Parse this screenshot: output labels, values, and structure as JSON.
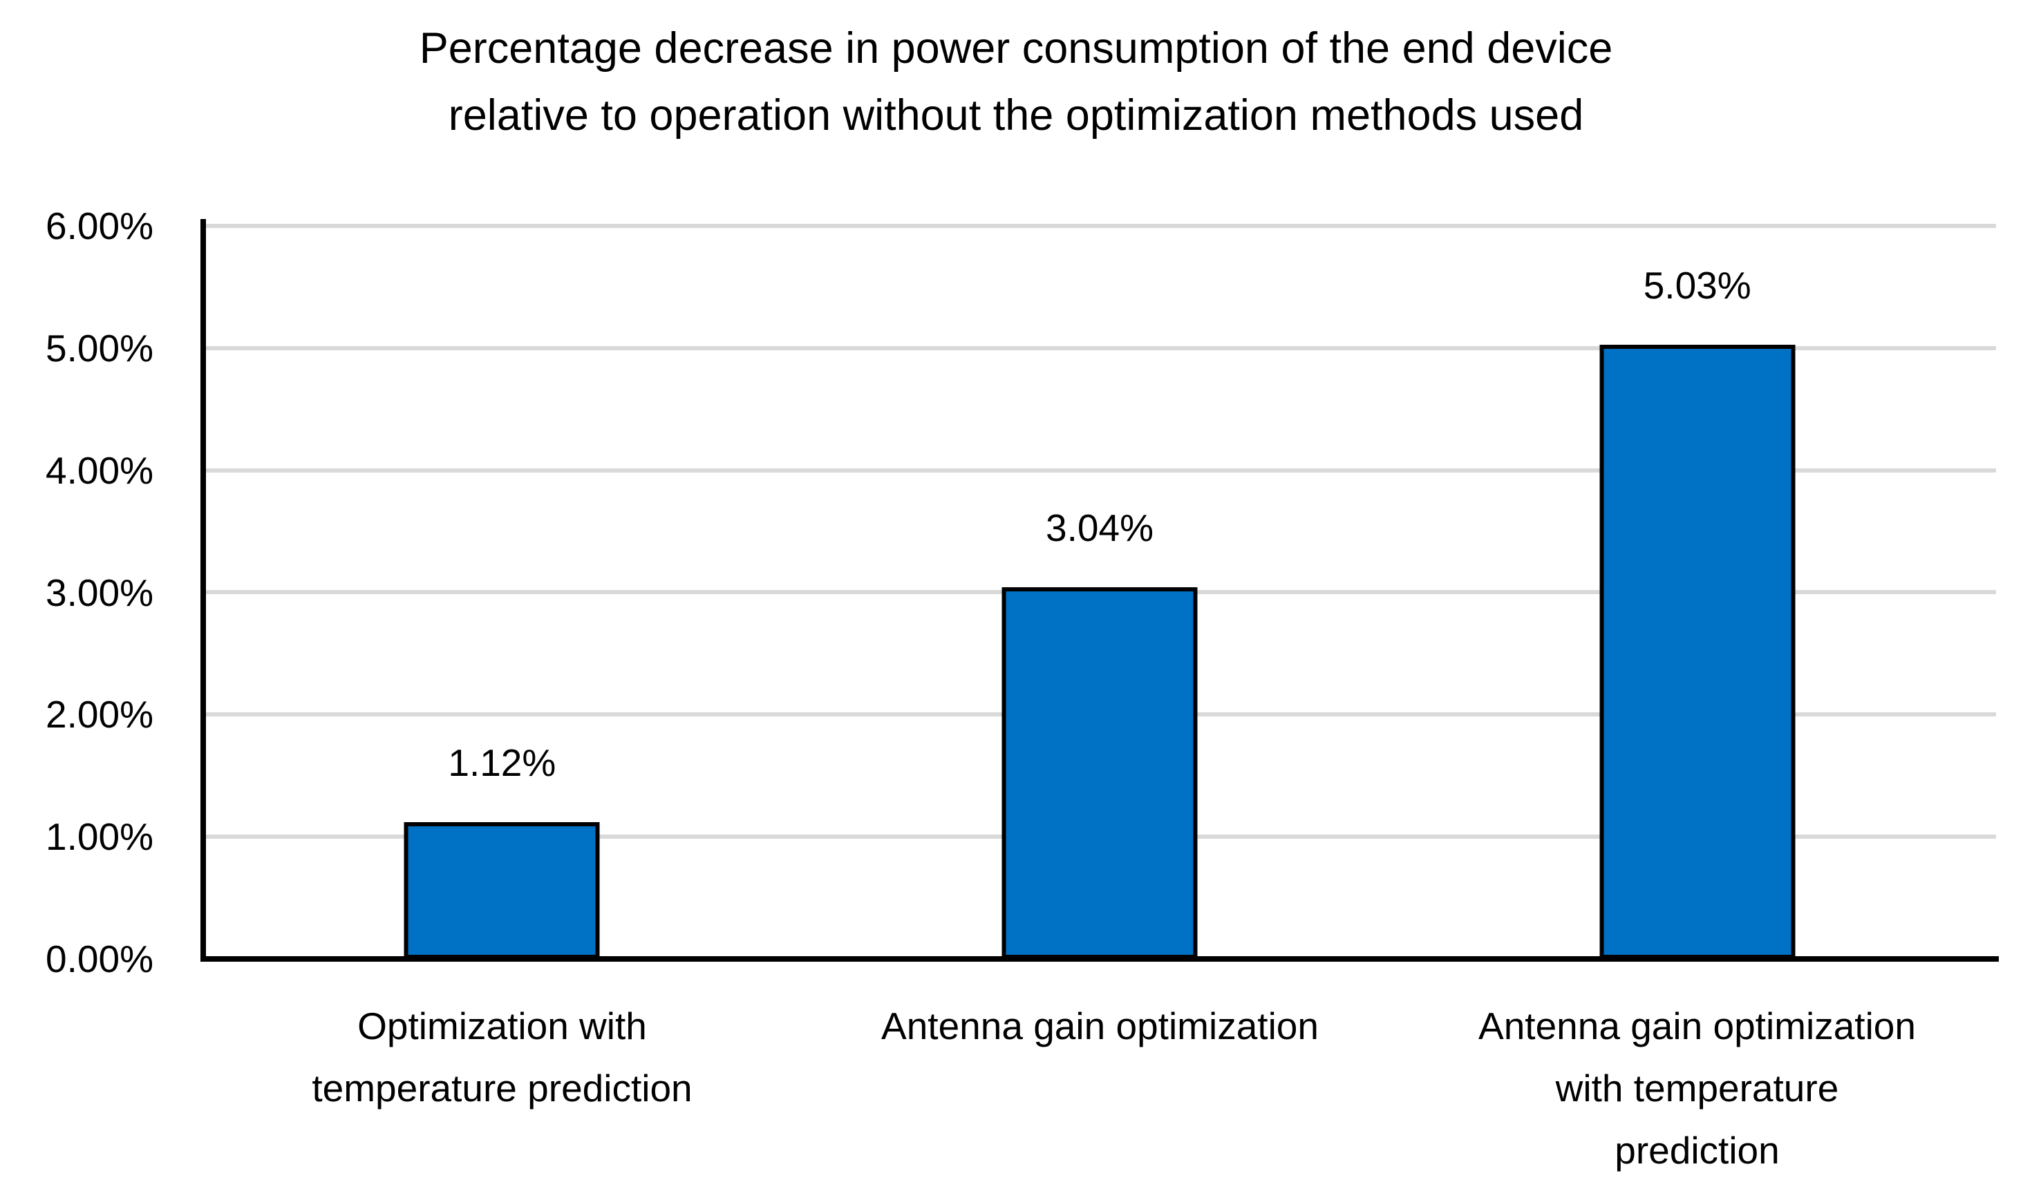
{
  "title": {
    "line1": "Percentage decrease in power consumption of the end device",
    "line2": "relative to operation without the optimization methods used"
  },
  "chart_data": {
    "type": "bar",
    "title": "Percentage decrease in power consumption of the end device relative to operation without the optimization methods used",
    "categories": [
      "Optimization with temperature prediction",
      "Antenna gain optimization",
      "Antenna gain optimization with temperature prediction"
    ],
    "category_lines": [
      [
        "Optimization with",
        "temperature prediction"
      ],
      [
        "Antenna gain optimization"
      ],
      [
        "Antenna gain optimization",
        "with temperature",
        "prediction"
      ]
    ],
    "values": [
      1.12,
      3.04,
      5.03
    ],
    "data_labels": [
      "1.12%",
      "3.04%",
      "5.03%"
    ],
    "yticks": [
      "6.00%",
      "5.00%",
      "4.00%",
      "3.00%",
      "2.00%",
      "1.00%",
      "0.00%"
    ],
    "ylim": [
      0,
      6
    ],
    "xlabel": "",
    "ylabel": "",
    "grid": true,
    "legend": false,
    "colors": {
      "bar_fill": "#0072C6",
      "bar_border": "#000000",
      "gridline": "#D9D9D9",
      "axis": "#000000",
      "text": "#000000",
      "background": "#FFFFFF"
    }
  }
}
